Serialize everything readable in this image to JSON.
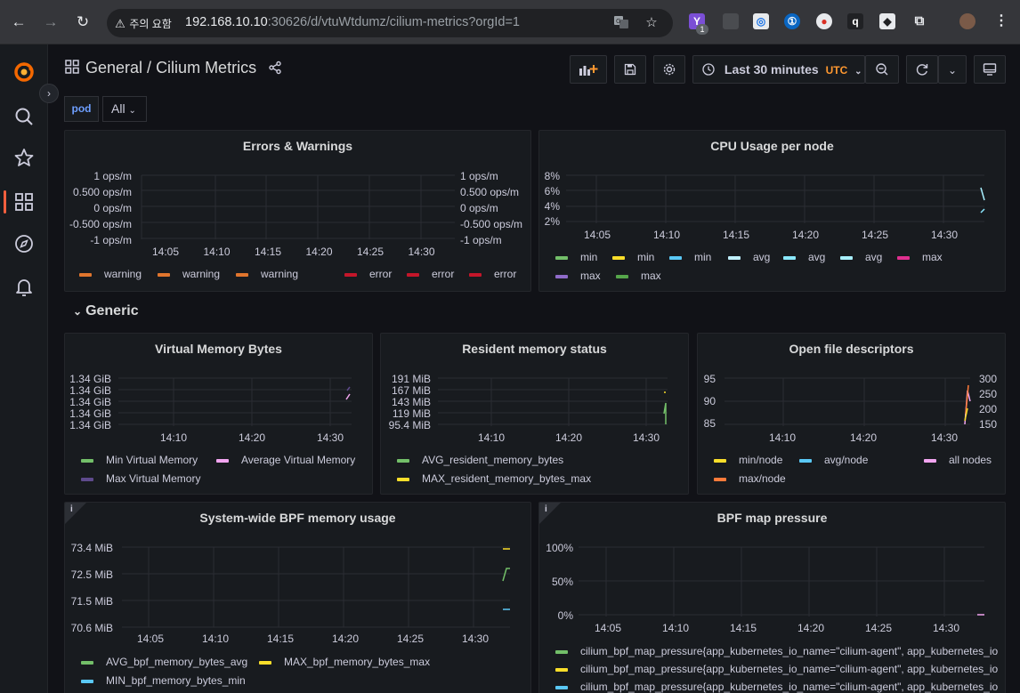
{
  "browser": {
    "warning_label": "주의 요함",
    "url_host": "192.168.10.10",
    "url_rest": ":30626/d/vtuWtdumz/cilium-metrics?orgId=1",
    "ext_badge": "1"
  },
  "dashboard": {
    "folder": "General",
    "separator": " / ",
    "title": "Cilium Metrics",
    "time_range": "Last 30 minutes",
    "timezone": "UTC",
    "variable_label": "pod",
    "variable_value": "All",
    "row_title": "Generic"
  },
  "colors": {
    "green": "#73bf69",
    "yellow": "#fade2a",
    "cyan": "#5ac8f5",
    "light_cyan": "#8ae8ff",
    "magenta": "#e02f8f",
    "purple": "#8f6bc9",
    "orange": "#ff9830",
    "pink": "#f2a5f0",
    "red_dark": "#c4162a",
    "orange_dark": "#e0752d",
    "grid": "#2a2d33"
  },
  "panels": {
    "errors": {
      "title": "Errors & Warnings",
      "y_left": [
        "1 ops/m",
        "0.500 ops/m",
        "0 ops/m",
        "-0.500 ops/m",
        "-1 ops/m"
      ],
      "y_right": [
        "1 ops/m",
        "0.500 ops/m",
        "0 ops/m",
        "-0.500 ops/m",
        "-1 ops/m"
      ],
      "x_ticks": [
        "14:05",
        "14:10",
        "14:15",
        "14:20",
        "14:25",
        "14:30"
      ],
      "legend": [
        {
          "label": "warning",
          "color": "#e0752d"
        },
        {
          "label": "warning",
          "color": "#e0752d"
        },
        {
          "label": "warning",
          "color": "#e0752d"
        },
        {
          "label": "error",
          "color": "#c4162a"
        },
        {
          "label": "error",
          "color": "#c4162a"
        },
        {
          "label": "error",
          "color": "#c4162a"
        }
      ]
    },
    "cpu": {
      "title": "CPU Usage per node",
      "y_ticks": [
        "8%",
        "6%",
        "4%",
        "2%"
      ],
      "x_ticks": [
        "14:05",
        "14:10",
        "14:15",
        "14:20",
        "14:25",
        "14:30"
      ],
      "legend": [
        {
          "label": "min",
          "color": "#73bf69"
        },
        {
          "label": "min",
          "color": "#fade2a"
        },
        {
          "label": "min",
          "color": "#5ac8f5"
        },
        {
          "label": "avg",
          "color": "#c0f0ff"
        },
        {
          "label": "avg",
          "color": "#8ae8ff"
        },
        {
          "label": "avg",
          "color": "#a8f0ff"
        },
        {
          "label": "max",
          "color": "#e02f8f"
        },
        {
          "label": "max",
          "color": "#8f6bc9"
        },
        {
          "label": "max",
          "color": "#56a64b"
        }
      ]
    },
    "vmem": {
      "title": "Virtual Memory Bytes",
      "y_ticks": [
        "1.34 GiB",
        "1.34 GiB",
        "1.34 GiB",
        "1.34 GiB",
        "1.34 GiB"
      ],
      "x_ticks": [
        "14:10",
        "14:20",
        "14:30"
      ],
      "legend": [
        {
          "label": "Min Virtual Memory",
          "color": "#73bf69"
        },
        {
          "label": "Average Virtual Memory",
          "color": "#f2a5f0"
        },
        {
          "label": "Max Virtual Memory",
          "color": "#5e4a8c"
        }
      ]
    },
    "rss": {
      "title": "Resident memory status",
      "y_ticks": [
        "191 MiB",
        "167 MiB",
        "143 MiB",
        "119 MiB",
        "95.4 MiB"
      ],
      "x_ticks": [
        "14:10",
        "14:20",
        "14:30"
      ],
      "legend": [
        {
          "label": "AVG_resident_memory_bytes",
          "color": "#73bf69"
        },
        {
          "label": "MAX_resident_memory_bytes_max",
          "color": "#fade2a"
        }
      ]
    },
    "fds": {
      "title": "Open file descriptors",
      "y_left": [
        "95",
        "90",
        "85"
      ],
      "y_right": [
        "300",
        "250",
        "200",
        "150"
      ],
      "x_ticks": [
        "14:10",
        "14:20",
        "14:30"
      ],
      "legend": [
        {
          "label": "min/node",
          "color": "#fade2a"
        },
        {
          "label": "avg/node",
          "color": "#5ac8f5"
        },
        {
          "label": "all nodes",
          "color": "#f2a5f0"
        },
        {
          "label": "max/node",
          "color": "#ff7b3a"
        }
      ]
    },
    "bpf_mem": {
      "title": "System-wide BPF memory usage",
      "info": "i",
      "y_ticks": [
        "73.4 MiB",
        "72.5 MiB",
        "71.5 MiB",
        "70.6 MiB"
      ],
      "x_ticks": [
        "14:05",
        "14:10",
        "14:15",
        "14:20",
        "14:25",
        "14:30"
      ],
      "legend": [
        {
          "label": "AVG_bpf_memory_bytes_avg",
          "color": "#73bf69"
        },
        {
          "label": "MAX_bpf_memory_bytes_max",
          "color": "#fade2a"
        },
        {
          "label": "MIN_bpf_memory_bytes_min",
          "color": "#5ac8f5"
        }
      ]
    },
    "bpf_map": {
      "title": "BPF map pressure",
      "info": "i",
      "y_ticks": [
        "100%",
        "50%",
        "0%"
      ],
      "x_ticks": [
        "14:05",
        "14:10",
        "14:15",
        "14:20",
        "14:25",
        "14:30"
      ],
      "legend": [
        {
          "label": "cilium_bpf_map_pressure{app_kubernetes_io_name=\"cilium-agent\", app_kubernetes_io",
          "color": "#73bf69"
        },
        {
          "label": "cilium_bpf_map_pressure{app_kubernetes_io_name=\"cilium-agent\", app_kubernetes_io",
          "color": "#fade2a"
        },
        {
          "label": "cilium_bpf_map_pressure{app_kubernetes_io_name=\"cilium-agent\", app_kubernetes_io",
          "color": "#5ac8f5"
        }
      ]
    }
  }
}
